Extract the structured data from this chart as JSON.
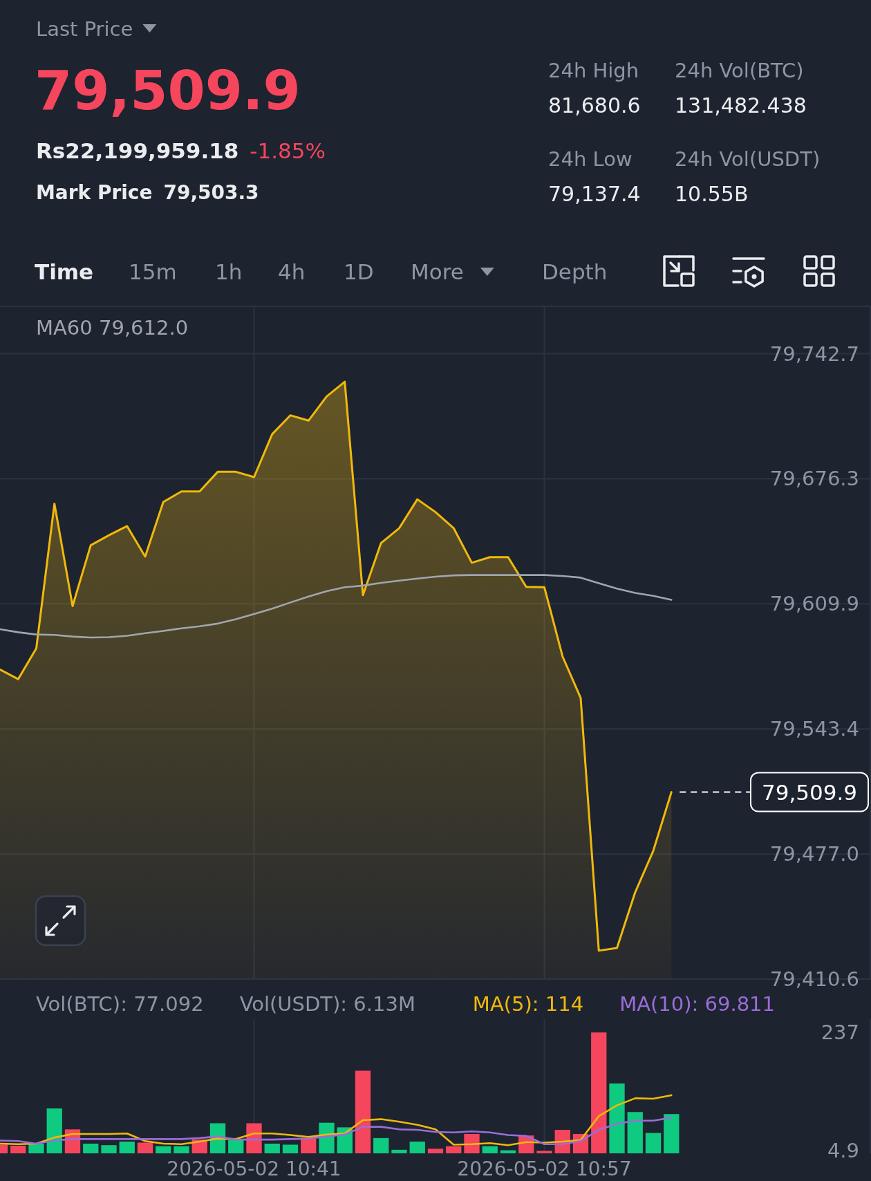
{
  "chart_data": [
    {
      "type": "other",
      "annotations": [
        "Last Price",
        "79,509.9",
        "Rs22,199,959.18",
        "-1.85%",
        "Mark Price",
        "79,503.3",
        "24h High",
        "81,680.6",
        "24h Vol(BTC)",
        "131,482.438",
        "24h Low",
        "79,137.4",
        "24h Vol(USDT)",
        "10.55B",
        "Time",
        "15m",
        "1h",
        "4h",
        "1D",
        "More",
        "Depth"
      ]
    },
    {
      "type": "area",
      "x": [
        "2026-05-02T10:27",
        "2026-05-02T10:28",
        "2026-05-02T10:29",
        "2026-05-02T10:30",
        "2026-05-02T10:31",
        "2026-05-02T10:32",
        "2026-05-02T10:33",
        "2026-05-02T10:34",
        "2026-05-02T10:35",
        "2026-05-02T10:36",
        "2026-05-02T10:37",
        "2026-05-02T10:38",
        "2026-05-02T10:39",
        "2026-05-02T10:40",
        "2026-05-02T10:41",
        "2026-05-02T10:42",
        "2026-05-02T10:43",
        "2026-05-02T10:44",
        "2026-05-02T10:45",
        "2026-05-02T10:46",
        "2026-05-02T10:47",
        "2026-05-02T10:48",
        "2026-05-02T10:49",
        "2026-05-02T10:50",
        "2026-05-02T10:51",
        "2026-05-02T10:52",
        "2026-05-02T10:53",
        "2026-05-02T10:54",
        "2026-05-02T10:55",
        "2026-05-02T10:56",
        "2026-05-02T10:57",
        "2026-05-02T10:58",
        "2026-05-02T10:59",
        "2026-05-02T11:00",
        "2026-05-02T11:01",
        "2026-05-02T11:02",
        "2026-05-02T11:03",
        "2026-05-02T11:04"
      ],
      "series": [
        {
          "type": "area",
          "color": "#f0b90b",
          "values": [
            79575.0,
            79569.9,
            79586.2,
            79663.1,
            79608.7,
            79641.0,
            79646.3,
            79651.2,
            79635.0,
            79664.0,
            79669.6,
            79669.6,
            79680.0,
            79680.0,
            79677.2,
            79700.0,
            79710.0,
            79707.2,
            79720.0,
            79727.8,
            79614.5,
            79642.2,
            79650.1,
            79665.4,
            79658.6,
            79650.1,
            79631.7,
            79634.7,
            79634.7,
            79618.9,
            79618.7,
            79582.0,
            79559.9,
            79425.7,
            79427.1,
            79456.6,
            79478.7,
            79509.9
          ]
        },
        {
          "type": "line",
          "name": "MA60 79,612.0",
          "color": "#a0a6ae",
          "values": [
            79596.4,
            79594.8,
            79593.6,
            79593.4,
            79592.5,
            79592.0,
            79592.2,
            79592.9,
            79594.3,
            79595.5,
            79596.9,
            79598.0,
            79599.4,
            79601.7,
            79604.5,
            79607.3,
            79610.6,
            79613.8,
            79616.6,
            79618.7,
            79619.6,
            79621.0,
            79622.2,
            79623.3,
            79624.3,
            79625.0,
            79625.2,
            79625.2,
            79625.2,
            79625.2,
            79625.2,
            79624.7,
            79623.8,
            79620.8,
            79618.0,
            79615.7,
            79614.1,
            79612.0
          ]
        }
      ],
      "xlim": [
        "2026-05-02T10:27",
        "2026-05-02T11:15"
      ],
      "xticks": [
        {
          "value": "2026-05-02T10:41",
          "label": null
        },
        {
          "value": "2026-05-02T10:57",
          "label": null
        }
      ],
      "ylim": [
        79410.6,
        79767.9
      ],
      "yticks": [
        {
          "value": 79410.6,
          "label": "79,410.6"
        },
        {
          "value": 79477.0,
          "label": "79,477.0"
        },
        {
          "value": 79543.4,
          "label": "79,543.4"
        },
        {
          "value": 79609.9,
          "label": "79,609.9"
        },
        {
          "value": 79676.3,
          "label": "79,676.3"
        },
        {
          "value": 79742.7,
          "label": "79,742.7"
        }
      ],
      "grid": true,
      "legend": "top left",
      "tick_labels": "y",
      "ref_lines": [
        {
          "axis": "y",
          "value": 79509.9,
          "label": "79,509.9",
          "line_style": "dashed",
          "color": "#ffffff"
        }
      ]
    },
    {
      "type": "bar",
      "x": [
        "2026-05-02T10:27",
        "2026-05-02T10:28",
        "2026-05-02T10:29",
        "2026-05-02T10:30",
        "2026-05-02T10:31",
        "2026-05-02T10:32",
        "2026-05-02T10:33",
        "2026-05-02T10:34",
        "2026-05-02T10:35",
        "2026-05-02T10:36",
        "2026-05-02T10:37",
        "2026-05-02T10:38",
        "2026-05-02T10:39",
        "2026-05-02T10:40",
        "2026-05-02T10:41",
        "2026-05-02T10:42",
        "2026-05-02T10:43",
        "2026-05-02T10:44",
        "2026-05-02T10:45",
        "2026-05-02T10:46",
        "2026-05-02T10:47",
        "2026-05-02T10:48",
        "2026-05-02T10:49",
        "2026-05-02T10:50",
        "2026-05-02T10:51",
        "2026-05-02T10:52",
        "2026-05-02T10:53",
        "2026-05-02T10:54",
        "2026-05-02T10:55",
        "2026-05-02T10:56",
        "2026-05-02T10:57",
        "2026-05-02T10:58",
        "2026-05-02T10:59",
        "2026-05-02T11:00",
        "2026-05-02T11:01",
        "2026-05-02T11:02",
        "2026-05-02T11:03",
        "2026-05-02T11:04"
      ],
      "series": [
        {
          "type": "bar",
          "colors": [
            "#f6465d",
            "#f6465d",
            "#0ecb81",
            "#0ecb81",
            "#f6465d",
            "#0ecb81",
            "#0ecb81",
            "#0ecb81",
            "#f6465d",
            "#0ecb81",
            "#0ecb81",
            "#f6465d",
            "#0ecb81",
            "#0ecb81",
            "#f6465d",
            "#0ecb81",
            "#0ecb81",
            "#f6465d",
            "#0ecb81",
            "#0ecb81",
            "#f6465d",
            "#0ecb81",
            "#0ecb81",
            "#0ecb81",
            "#f6465d",
            "#f6465d",
            "#f6465d",
            "#0ecb81",
            "#0ecb81",
            "#f6465d",
            "#f6465d",
            "#f6465d",
            "#f6465d",
            "#f6465d",
            "#0ecb81",
            "#0ecb81",
            "#0ecb81",
            "#0ecb81"
          ],
          "values": [
            17,
            15,
            19,
            88,
            47,
            19,
            16,
            23,
            21,
            14,
            14,
            27,
            59,
            26,
            59,
            19,
            17,
            29,
            60,
            51,
            162,
            30,
            7,
            23,
            9,
            14,
            38,
            14,
            6,
            35,
            4.9,
            46,
            38,
            237,
            137,
            81,
            40,
            77
          ]
        },
        {
          "type": "line",
          "name": "MA(5): 114",
          "color": "#f0b90b",
          "values": [
            19,
            18,
            19,
            31,
            38,
            38,
            38,
            39,
            24,
            19,
            18,
            23,
            29,
            28,
            39,
            39,
            36,
            32,
            37,
            39,
            65,
            67,
            62,
            56,
            47,
            17,
            18,
            20,
            16,
            22,
            21,
            23,
            26,
            73,
            94,
            108,
            107,
            114
          ]
        },
        {
          "type": "line",
          "name": "MA(10): 69.811",
          "color": "#9a6dd7",
          "values": [
            25,
            24,
            19,
            25,
            28,
            28,
            28,
            28,
            28,
            28,
            28,
            30,
            33,
            27,
            27,
            27,
            28,
            29,
            33,
            37,
            52,
            52,
            47,
            46,
            42,
            41,
            43,
            41,
            36,
            34,
            18,
            18,
            24,
            46,
            58,
            64,
            64,
            70
          ]
        }
      ],
      "xlim": [
        "2026-05-02T10:27",
        "2026-05-02T11:15"
      ],
      "xticks": [
        {
          "value": "2026-05-02T10:41",
          "label": "2026-05-02 10:41"
        },
        {
          "value": "2026-05-02T10:57",
          "label": "2026-05-02 10:57"
        }
      ],
      "ylim": [
        0,
        263
      ],
      "yticks": [
        4.9,
        237
      ],
      "grid": "x",
      "legend": "top right",
      "annotations": [
        "Vol(BTC): 77.092",
        "Vol(USDT): 6.13M"
      ]
    }
  ]
}
